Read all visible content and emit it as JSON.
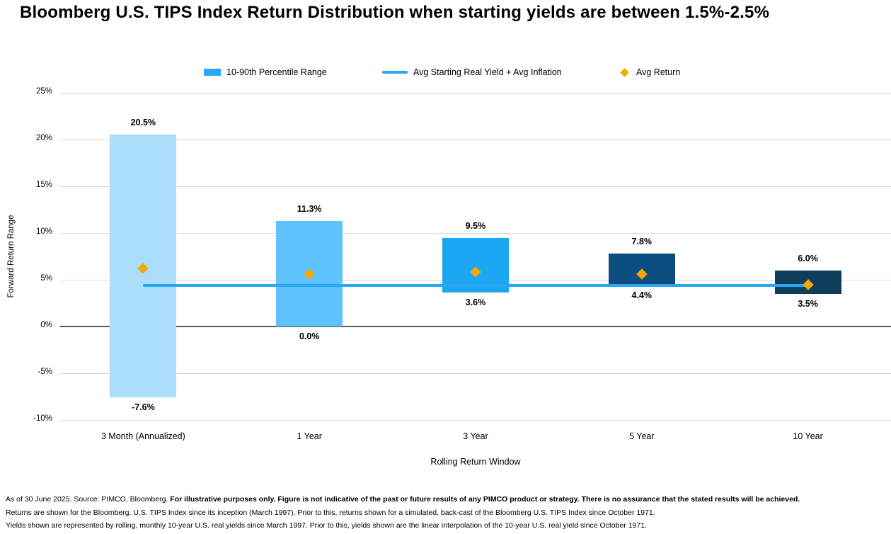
{
  "title": "Bloomberg U.S. TIPS Index Return Distribution when starting yields are between 1.5%-2.5%",
  "legend": [
    {
      "label": "10-90th Percentile Range",
      "marker": "bar-swatch",
      "color": "#29A9F0"
    },
    {
      "label": "Avg Starting Real Yield + Avg Inflation",
      "marker": "line-swatch",
      "color": "#29A6F2"
    },
    {
      "label": "Avg Return",
      "marker": "diamond-swatch",
      "color": "#F5A800"
    }
  ],
  "chart_data": {
    "type": "bar",
    "subtype": "floating-range-bars-with-line-and-markers",
    "title": "Bloomberg U.S. TIPS Index Return Distribution when starting yields are between 1.5%-2.5%",
    "xlabel": "Rolling Return Window",
    "ylabel": "Forward Return Range",
    "ylim": [
      -10,
      25
    ],
    "yticks": [
      25,
      20,
      15,
      10,
      5,
      0,
      -5,
      -10
    ],
    "ytick_suffix": "%",
    "grid": true,
    "legend_position": "top",
    "categories": [
      "3 Month (Annualized)",
      "1 Year",
      "3 Year",
      "5 Year",
      "10 Year"
    ],
    "series": [
      {
        "name": "10-90th Percentile Range",
        "type": "range-bar",
        "low": [
          -7.6,
          0.0,
          3.6,
          4.4,
          3.5
        ],
        "high": [
          20.5,
          11.3,
          9.5,
          7.8,
          6.0
        ],
        "colors": [
          "#ABDEFA",
          "#5EC3FC",
          "#1CA7F2",
          "#0B4D7E",
          "#0F3D5C"
        ]
      },
      {
        "name": "Avg Starting Real Yield + Avg Inflation",
        "type": "line",
        "value": 4.4,
        "color": "#29A6F2"
      },
      {
        "name": "Avg Return",
        "type": "scatter-diamond",
        "values": [
          6.2,
          5.6,
          5.8,
          5.6,
          4.5
        ],
        "color": "#F5A800"
      }
    ],
    "bar_labels": {
      "high": [
        "20.5%",
        "11.3%",
        "9.5%",
        "7.8%",
        "6.0%"
      ],
      "low": [
        "-7.6%",
        "0.0%",
        "3.6%",
        "4.4%",
        "3.5%"
      ]
    },
    "gridline_color": "#D9D9D9",
    "zero_line_color": "#595959"
  },
  "footnotes": {
    "line1_normal": "As of 30 June 2025. Source: PIMCO, Bloomberg. ",
    "line1_bold": "For illustrative purposes only. Figure is not indicative of the past or future results of any PIMCO product or strategy. There is no assurance that the stated results will be achieved.",
    "line2": "Returns are shown for the Bloomberg. U.S. TIPS Index since its inception (March 1997). Prior to this, returns shown for a simulated, back-cast of the Bloomberg U.S. TIPS Index since October 1971.",
    "line3": "Yields shown are represented by rolling, monthly 10-year U.S. real yields since March 1997. Prior to this, yields shown are the linear interpolation of the 10-year U.S. real yield since October 1971."
  }
}
